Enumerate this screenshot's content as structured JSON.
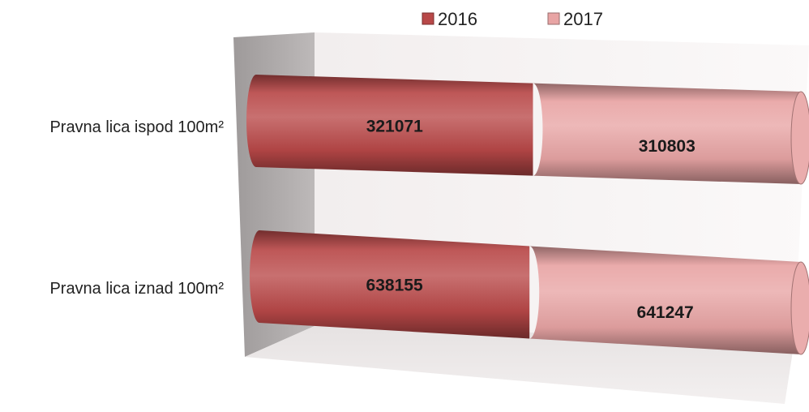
{
  "chart_data": {
    "type": "bar",
    "orientation": "horizontal",
    "stacked": true,
    "style": "3d-cylinder",
    "categories": [
      "Pravna lica ispod 100m²",
      "Pravna lica iznad 100m²"
    ],
    "series": [
      {
        "name": "2016",
        "values": [
          321071,
          638155
        ],
        "color": "#b84848"
      },
      {
        "name": "2017",
        "values": [
          310803,
          641247
        ],
        "color": "#e8a4a4"
      }
    ],
    "title": "",
    "xlabel": "",
    "ylabel": "",
    "legend": "top",
    "grid": false
  }
}
